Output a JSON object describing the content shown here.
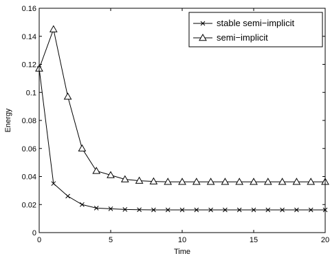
{
  "chart_data": {
    "type": "line",
    "title": "",
    "xlabel": "Time",
    "ylabel": "Energy",
    "xlim": [
      0,
      20
    ],
    "ylim": [
      0,
      0.16
    ],
    "x_ticks": [
      "0",
      "5",
      "10",
      "15",
      "20"
    ],
    "y_ticks": [
      "0",
      "0.02",
      "0.04",
      "0.06",
      "0.08",
      "0.1",
      "0.12",
      "0.14",
      "0.16"
    ],
    "grid": false,
    "legend_position": "top-right",
    "series": [
      {
        "name": "stable semi−implicit",
        "marker": "x",
        "color": "#000000",
        "x": [
          0,
          1,
          2,
          3,
          4,
          5,
          6,
          7,
          8,
          9,
          10,
          11,
          12,
          13,
          14,
          15,
          16,
          17,
          18,
          19,
          20
        ],
        "y": [
          0.117,
          0.035,
          0.026,
          0.02,
          0.0175,
          0.017,
          0.0165,
          0.0163,
          0.0162,
          0.0162,
          0.0162,
          0.0162,
          0.0162,
          0.0162,
          0.0162,
          0.0162,
          0.0162,
          0.0162,
          0.0162,
          0.0162,
          0.0162
        ]
      },
      {
        "name": "semi−implicit",
        "marker": "triangle",
        "color": "#000000",
        "x": [
          0,
          1,
          2,
          3,
          4,
          5,
          6,
          7,
          8,
          9,
          10,
          11,
          12,
          13,
          14,
          15,
          16,
          17,
          18,
          19,
          20
        ],
        "y": [
          0.117,
          0.145,
          0.097,
          0.06,
          0.044,
          0.041,
          0.038,
          0.037,
          0.0365,
          0.0362,
          0.0362,
          0.0362,
          0.0362,
          0.0362,
          0.0362,
          0.0362,
          0.0362,
          0.0362,
          0.0362,
          0.0362,
          0.0362
        ]
      }
    ]
  }
}
